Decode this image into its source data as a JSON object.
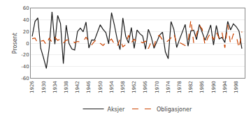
{
  "chart_data": {
    "type": "line",
    "ylabel": "Prosent",
    "x": [
      1926,
      1927,
      1928,
      1929,
      1930,
      1931,
      1932,
      1933,
      1934,
      1935,
      1936,
      1937,
      1938,
      1939,
      1940,
      1941,
      1942,
      1943,
      1944,
      1945,
      1946,
      1947,
      1948,
      1949,
      1950,
      1951,
      1952,
      1953,
      1954,
      1955,
      1956,
      1957,
      1958,
      1959,
      1960,
      1961,
      1962,
      1963,
      1964,
      1965,
      1966,
      1967,
      1968,
      1969,
      1970,
      1971,
      1972,
      1973,
      1974,
      1975,
      1976,
      1977,
      1978,
      1979,
      1980,
      1981,
      1982,
      1983,
      1984,
      1985,
      1986,
      1987,
      1988,
      1989,
      1990,
      1991,
      1992,
      1993,
      1994,
      1995,
      1996,
      1997,
      1998,
      1999,
      2000
    ],
    "series": [
      {
        "name": "Aksjer",
        "color": "#1a1a1a",
        "line_style": "solid",
        "values": [
          11.6,
          37.5,
          43.6,
          -8.4,
          -24.9,
          -43.3,
          -8.2,
          54.0,
          -1.4,
          47.7,
          33.9,
          -35.0,
          31.1,
          -0.4,
          -9.8,
          -11.6,
          20.3,
          25.9,
          19.8,
          36.4,
          -8.1,
          5.7,
          5.5,
          18.8,
          31.7,
          24.0,
          18.4,
          -1.0,
          52.6,
          31.6,
          6.6,
          -10.8,
          43.4,
          12.0,
          0.5,
          26.9,
          -8.7,
          22.8,
          16.5,
          12.4,
          -10.1,
          24.0,
          11.1,
          -8.5,
          4.0,
          14.3,
          19.0,
          -14.7,
          -26.5,
          37.2,
          23.8,
          -7.2,
          6.6,
          18.4,
          32.4,
          -4.9,
          21.4,
          22.5,
          6.3,
          32.2,
          18.5,
          5.2,
          16.8,
          31.5,
          -3.1,
          30.5,
          7.6,
          10.1,
          1.3,
          37.6,
          23.0,
          33.4,
          28.6,
          21.0,
          -9.1
        ]
      },
      {
        "name": "Obligasjoner",
        "color": "#cc4400",
        "line_style": "dashed",
        "values": [
          7.8,
          8.9,
          0.1,
          3.4,
          4.7,
          -2.6,
          8.7,
          1.9,
          10.0,
          5.0,
          7.5,
          0.2,
          5.5,
          5.9,
          6.1,
          0.9,
          3.2,
          2.1,
          2.8,
          10.7,
          1.7,
          -2.6,
          3.4,
          6.5,
          0.1,
          -3.9,
          1.2,
          3.6,
          7.2,
          -1.3,
          -5.6,
          7.5,
          -6.1,
          -2.3,
          13.8,
          1.0,
          6.8,
          1.2,
          3.5,
          0.7,
          3.7,
          -9.2,
          2.6,
          -5.1,
          12.1,
          13.2,
          5.7,
          1.1,
          4.4,
          9.2,
          16.8,
          -0.7,
          1.2,
          -1.2,
          -4.0,
          1.9,
          40.4,
          0.7,
          15.5,
          31.0,
          24.4,
          -2.7,
          9.7,
          18.1,
          6.2,
          19.3,
          8.1,
          18.2,
          -7.8,
          31.7,
          -0.9,
          15.9,
          13.1,
          -8.3,
          20.1
        ]
      }
    ],
    "xlim": [
      1925.5,
      2001.0
    ],
    "ylim": [
      -60,
      60
    ],
    "xticks": [
      1926,
      1930,
      1934,
      1938,
      1942,
      1946,
      1950,
      1954,
      1958,
      1962,
      1966,
      1970,
      1974,
      1978,
      1982,
      1986,
      1990,
      1994,
      1998
    ],
    "yticks": [
      -60,
      -40,
      -20,
      0,
      20,
      40,
      60
    ],
    "grid": true,
    "legend": "bottom"
  }
}
